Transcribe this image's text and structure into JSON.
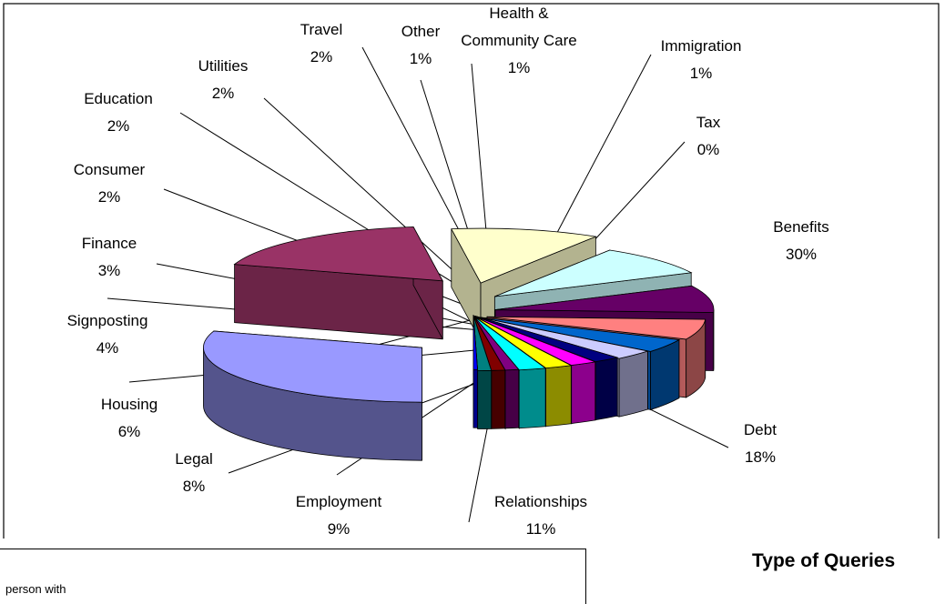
{
  "heading": "Type of Queries",
  "fragment_text": "person with",
  "chart_data": {
    "type": "pie",
    "style": "3d-exploded",
    "title": "",
    "label_position": "outside with leader lines",
    "slices": [
      {
        "label": "Benefits",
        "pct_text": "30%",
        "value": 30,
        "color": "#9999FF"
      },
      {
        "label": "Debt",
        "pct_text": "18%",
        "value": 18,
        "color": "#993366"
      },
      {
        "label": "Relationships",
        "pct_text": "11%",
        "value": 11,
        "color": "#FFFFCC"
      },
      {
        "label": "Employment",
        "pct_text": "9%",
        "value": 9,
        "color": "#CCFFFF"
      },
      {
        "label": "Legal",
        "pct_text": "8%",
        "value": 8,
        "color": "#660066"
      },
      {
        "label": "Housing",
        "pct_text": "6%",
        "value": 6,
        "color": "#FF8080"
      },
      {
        "label": "Signposting",
        "pct_text": "4%",
        "value": 4,
        "color": "#0066CC"
      },
      {
        "label": "Finance",
        "pct_text": "3%",
        "value": 3,
        "color": "#CCCCFF"
      },
      {
        "label": "Consumer",
        "pct_text": "2%",
        "value": 2,
        "color": "#000080"
      },
      {
        "label": "Education",
        "pct_text": "2%",
        "value": 2,
        "color": "#FF00FF"
      },
      {
        "label": "Utilities",
        "pct_text": "2%",
        "value": 2,
        "color": "#FFFF00"
      },
      {
        "label": "Travel",
        "pct_text": "2%",
        "value": 2,
        "color": "#00FFFF"
      },
      {
        "label": "Other",
        "pct_text": "1%",
        "value": 1,
        "color": "#800080"
      },
      {
        "label": "Health & Community Care",
        "pct_text": "1%",
        "value": 1,
        "color": "#800000"
      },
      {
        "label": "Immigration",
        "pct_text": "1%",
        "value": 1,
        "color": "#008080"
      },
      {
        "label": "Tax",
        "pct_text": "0%",
        "value": 0.3,
        "color": "#0000FF"
      }
    ]
  }
}
